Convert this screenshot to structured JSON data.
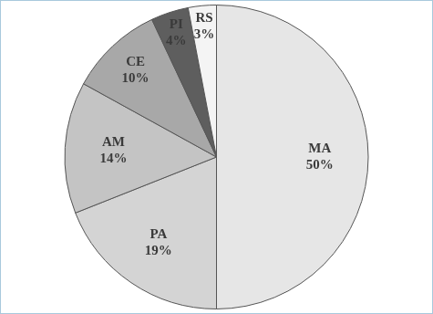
{
  "chart_data": {
    "type": "pie",
    "categories": [
      "MA",
      "PA",
      "AM",
      "CE",
      "PI",
      "RS"
    ],
    "values": [
      50,
      19,
      14,
      10,
      4,
      3
    ],
    "value_labels": [
      "50%",
      "19%",
      "14%",
      "10%",
      "4%",
      "3%"
    ],
    "colors": [
      "#e6e6e6",
      "#d4d4d4",
      "#c4c4c4",
      "#a8a8a8",
      "#5e5e5e",
      "#f4f4f4"
    ],
    "data_labels": true
  }
}
